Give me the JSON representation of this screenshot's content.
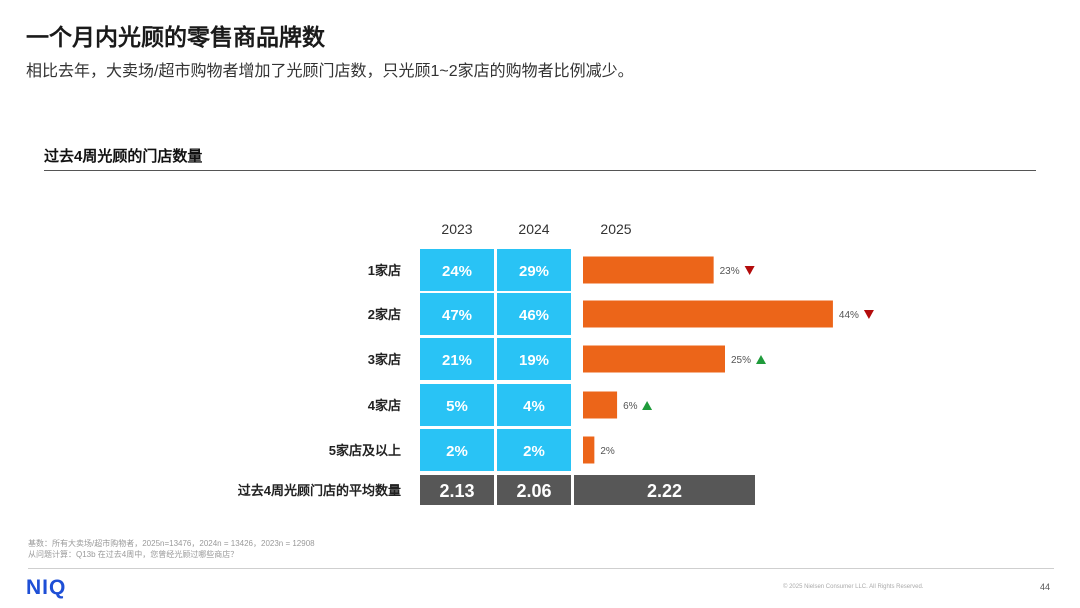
{
  "header": {
    "title": "一个月内光顾的零售商品牌数",
    "subtitle": "相比去年，大卖场/超市购物者增加了光顾门店数，只光顾1~2家店的购物者比例减少。"
  },
  "section": {
    "title": "过去4周光顾的门店数量"
  },
  "chart_data": {
    "type": "table+bar",
    "title": "过去4周光顾的门店数量",
    "columns": [
      "2023",
      "2024",
      "2025"
    ],
    "categories": [
      "1家店",
      "2家店",
      "3家店",
      "4家店",
      "5家店及以上"
    ],
    "series": [
      {
        "name": "2023",
        "values": [
          24,
          47,
          21,
          5,
          2
        ],
        "labels": [
          "24%",
          "47%",
          "21%",
          "5%",
          "2%"
        ]
      },
      {
        "name": "2024",
        "values": [
          29,
          46,
          19,
          4,
          2
        ],
        "labels": [
          "29%",
          "46%",
          "19%",
          "4%",
          "2%"
        ]
      },
      {
        "name": "2025",
        "values": [
          23,
          44,
          25,
          6,
          2
        ],
        "labels": [
          "23%",
          "44%",
          "25%",
          "6%",
          "2%"
        ]
      }
    ],
    "trend": [
      "down",
      "down",
      "up",
      "up",
      "none"
    ],
    "average": {
      "label": "过去4周光顾门店的平均数量",
      "values": [
        "2.13",
        "2.06",
        "2.22"
      ]
    },
    "colors": {
      "table_cell": "#29c3f5",
      "bar": "#ec6519",
      "average_cell": "#575757",
      "down": "#b30c0c",
      "up": "#1f9b3b"
    }
  },
  "footnotes": [
    "基数：所有大卖场/超市购物者，2025n=13476，2024n = 13426，2023n = 12908",
    "从问题计算：Q13b 在过去4周中，您曾经光顾过哪些商店？"
  ],
  "footer": {
    "logo": "NIQ",
    "copyright": "© 2025 Nielsen Consumer LLC. All Rights Reserved.",
    "page_number": "44"
  }
}
